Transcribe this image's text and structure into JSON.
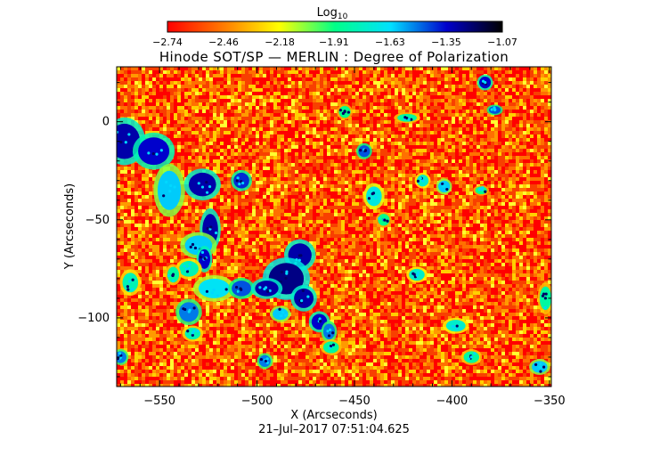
{
  "chart_data": {
    "type": "heatmap",
    "title": "Hinode SOT/SP — MERLIN : Degree of Polarization",
    "xlabel": "X (Arcseconds)",
    "ylabel": "Y (Arcseconds)",
    "xlim": [
      -572,
      -349
    ],
    "ylim": [
      -135,
      28
    ],
    "x_ticks": [
      -550,
      -500,
      -450,
      -400,
      -350
    ],
    "y_ticks": [
      0,
      -50,
      -100
    ],
    "x_tick_labels": [
      "−550",
      "−500",
      "−450",
      "−400",
      "−350"
    ],
    "y_tick_labels": [
      "0",
      "−50",
      "−100"
    ],
    "colorbar": {
      "label_base": "Log",
      "label_sub": "10",
      "range": [
        -2.74,
        -1.07
      ],
      "ticks": [
        -2.74,
        -2.46,
        -2.18,
        -1.91,
        -1.63,
        -1.35,
        -1.07
      ],
      "tick_labels": [
        "−2.74",
        "−2.46",
        "−2.18",
        "−1.91",
        "−1.63",
        "−1.35",
        "−1.07"
      ],
      "colors": [
        "#ff0000",
        "#ff7a00",
        "#ffff00",
        "#00ff88",
        "#00e0ff",
        "#0000cc",
        "#000000"
      ]
    },
    "background_level": -2.55,
    "features": [
      {
        "x": -568,
        "y": -10,
        "rx": 8,
        "ry": 9,
        "level": -1.3
      },
      {
        "x": -553,
        "y": -15,
        "rx": 8,
        "ry": 7,
        "level": -1.35
      },
      {
        "x": -545,
        "y": -35,
        "rx": 6,
        "ry": 10,
        "level": -1.6
      },
      {
        "x": -528,
        "y": -32,
        "rx": 7,
        "ry": 6,
        "level": -1.3
      },
      {
        "x": -508,
        "y": -30,
        "rx": 4,
        "ry": 4,
        "level": -1.4
      },
      {
        "x": -524,
        "y": -55,
        "rx": 4,
        "ry": 8,
        "level": -1.3
      },
      {
        "x": -530,
        "y": -63,
        "rx": 7,
        "ry": 5,
        "level": -1.6
      },
      {
        "x": -527,
        "y": -70,
        "rx": 3,
        "ry": 5,
        "level": -1.35
      },
      {
        "x": -535,
        "y": -75,
        "rx": 5,
        "ry": 4,
        "level": -1.8
      },
      {
        "x": -522,
        "y": -85,
        "rx": 8,
        "ry": 5,
        "level": -1.65
      },
      {
        "x": -508,
        "y": -85,
        "rx": 5,
        "ry": 4,
        "level": -1.45
      },
      {
        "x": -478,
        "y": -68,
        "rx": 6,
        "ry": 6,
        "level": -1.3
      },
      {
        "x": -485,
        "y": -80,
        "rx": 9,
        "ry": 8,
        "level": -1.25
      },
      {
        "x": -495,
        "y": -85,
        "rx": 6,
        "ry": 4,
        "level": -1.3
      },
      {
        "x": -476,
        "y": -90,
        "rx": 5,
        "ry": 5,
        "level": -1.3
      },
      {
        "x": -488,
        "y": -98,
        "rx": 4,
        "ry": 3,
        "level": -1.6
      },
      {
        "x": -468,
        "y": -102,
        "rx": 4,
        "ry": 4,
        "level": -1.35
      },
      {
        "x": -463,
        "y": -107,
        "rx": 3,
        "ry": 4,
        "level": -1.5
      },
      {
        "x": -535,
        "y": -97,
        "rx": 5,
        "ry": 5,
        "level": -1.5
      },
      {
        "x": -533,
        "y": -108,
        "rx": 4,
        "ry": 3,
        "level": -1.8
      },
      {
        "x": -565,
        "y": -82,
        "rx": 4,
        "ry": 5,
        "level": -1.8
      },
      {
        "x": -543,
        "y": -78,
        "rx": 3,
        "ry": 4,
        "level": -1.85
      },
      {
        "x": -496,
        "y": -122,
        "rx": 3,
        "ry": 3,
        "level": -1.5
      },
      {
        "x": -462,
        "y": -115,
        "rx": 4,
        "ry": 3,
        "level": -1.85
      },
      {
        "x": -383,
        "y": 20,
        "rx": 3,
        "ry": 3,
        "level": -1.35
      },
      {
        "x": -378,
        "y": 6,
        "rx": 3,
        "ry": 2,
        "level": -1.45
      },
      {
        "x": -423,
        "y": 2,
        "rx": 5,
        "ry": 2,
        "level": -1.85
      },
      {
        "x": -445,
        "y": -15,
        "rx": 3,
        "ry": 3,
        "level": -1.45
      },
      {
        "x": -440,
        "y": -38,
        "rx": 4,
        "ry": 5,
        "level": -1.7
      },
      {
        "x": -415,
        "y": -30,
        "rx": 3,
        "ry": 3,
        "level": -1.75
      },
      {
        "x": -404,
        "y": -33,
        "rx": 3,
        "ry": 3,
        "level": -1.6
      },
      {
        "x": -385,
        "y": -35,
        "rx": 3,
        "ry": 2,
        "level": -1.9
      },
      {
        "x": -418,
        "y": -78,
        "rx": 4,
        "ry": 3,
        "level": -1.75
      },
      {
        "x": -398,
        "y": -104,
        "rx": 5,
        "ry": 3,
        "level": -1.75
      },
      {
        "x": -390,
        "y": -120,
        "rx": 4,
        "ry": 3,
        "level": -1.85
      },
      {
        "x": -570,
        "y": -120,
        "rx": 3,
        "ry": 3,
        "level": -1.5
      },
      {
        "x": -352,
        "y": -90,
        "rx": 3,
        "ry": 6,
        "level": -1.85
      },
      {
        "x": -355,
        "y": -125,
        "rx": 4,
        "ry": 3,
        "level": -1.6
      },
      {
        "x": -435,
        "y": -50,
        "rx": 3,
        "ry": 3,
        "level": -1.9
      },
      {
        "x": -455,
        "y": 5,
        "rx": 3,
        "ry": 3,
        "level": -1.9
      }
    ]
  },
  "timestamp": "21–Jul–2017 07:51:04.625"
}
